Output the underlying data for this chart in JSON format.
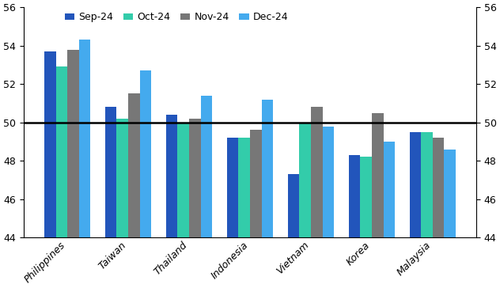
{
  "categories": [
    "Philippines",
    "Taiwan",
    "Thailand",
    "Indonesia",
    "Vietnam",
    "Korea",
    "Malaysia"
  ],
  "series": {
    "Sep-24": [
      53.7,
      50.8,
      50.4,
      49.2,
      47.3,
      48.3,
      49.5
    ],
    "Oct-24": [
      52.9,
      50.2,
      50.0,
      49.2,
      50.0,
      48.2,
      49.5
    ],
    "Nov-24": [
      53.8,
      51.5,
      50.2,
      49.6,
      50.8,
      50.5,
      49.2
    ],
    "Dec-24": [
      54.3,
      52.7,
      51.4,
      51.2,
      49.8,
      49.0,
      48.6
    ]
  },
  "colors": {
    "Sep-24": "#2255bb",
    "Oct-24": "#33ccaa",
    "Nov-24": "#777777",
    "Dec-24": "#44aaee"
  },
  "ylim": [
    44,
    56
  ],
  "ymin": 44,
  "yticks": [
    44,
    46,
    48,
    50,
    52,
    54,
    56
  ],
  "hline": 50,
  "bar_width": 0.19,
  "legend_labels": [
    "Sep-24",
    "Oct-24",
    "Nov-24",
    "Dec-24"
  ]
}
